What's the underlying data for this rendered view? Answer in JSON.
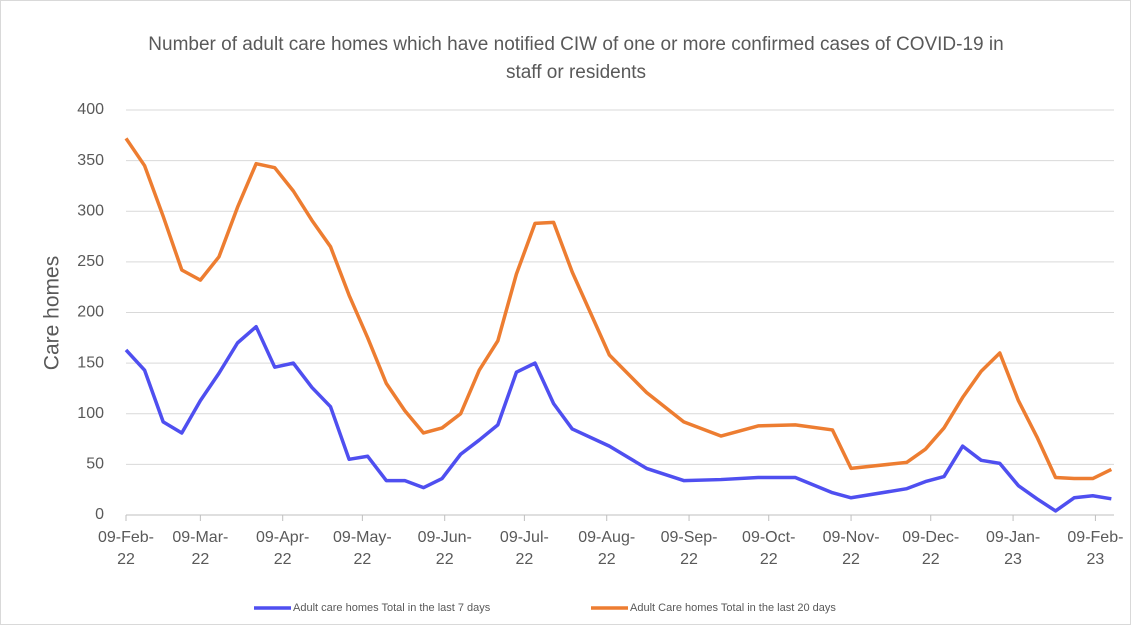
{
  "chart_data": {
    "type": "line",
    "title": "Number of adult care homes which have notified CIW of one or more confirmed cases of COVID-19 in staff or residents",
    "y_label": "Care homes",
    "x": [
      "2022-02-09",
      "2022-02-16",
      "2022-02-23",
      "2022-03-02",
      "2022-03-09",
      "2022-03-16",
      "2022-03-23",
      "2022-03-30",
      "2022-04-06",
      "2022-04-13",
      "2022-04-20",
      "2022-04-27",
      "2022-05-04",
      "2022-05-11",
      "2022-05-18",
      "2022-05-25",
      "2022-06-01",
      "2022-06-08",
      "2022-06-15",
      "2022-06-22",
      "2022-06-29",
      "2022-07-06",
      "2022-07-13",
      "2022-07-20",
      "2022-07-27",
      "2022-08-10",
      "2022-08-24",
      "2022-09-07",
      "2022-09-21",
      "2022-10-05",
      "2022-10-19",
      "2022-11-02",
      "2022-11-09",
      "2022-11-30",
      "2022-12-07",
      "2022-12-14",
      "2022-12-21",
      "2022-12-28",
      "2023-01-04",
      "2023-01-11",
      "2023-01-18",
      "2023-01-25",
      "2023-02-01",
      "2023-02-08",
      "2023-02-15"
    ],
    "series": [
      {
        "name": "Adult care homes Total in the last 7 days",
        "color": "#4f4ff0",
        "values": [
          163,
          143,
          92,
          81,
          113,
          140,
          170,
          186,
          146,
          150,
          126,
          107,
          55,
          58,
          34,
          34,
          27,
          36,
          60,
          74,
          89,
          141,
          150,
          110,
          85,
          68,
          46,
          34,
          35,
          37,
          37,
          22,
          17,
          26,
          33,
          38,
          68,
          54,
          51,
          29,
          16,
          4,
          17,
          19,
          16
        ]
      },
      {
        "name": "Adult Care homes Total in the last 20 days",
        "color": "#ed7d31",
        "values": [
          372,
          345,
          295,
          242,
          232,
          255,
          304,
          347,
          343,
          320,
          291,
          265,
          217,
          175,
          130,
          103,
          81,
          86,
          100,
          143,
          172,
          238,
          288,
          289,
          240,
          158,
          121,
          92,
          78,
          88,
          89,
          84,
          46,
          52,
          65,
          86,
          116,
          142,
          160,
          113,
          77,
          37,
          36,
          36,
          45
        ]
      }
    ],
    "xlim": [
      "2022-02-09",
      "2023-02-16"
    ],
    "xticks": [
      {
        "value": "2022-02-09",
        "label": "09-Feb-22"
      },
      {
        "value": "2022-03-09",
        "label": "09-Mar-22"
      },
      {
        "value": "2022-04-09",
        "label": "09-Apr-22"
      },
      {
        "value": "2022-05-09",
        "label": "09-May-22"
      },
      {
        "value": "2022-06-09",
        "label": "09-Jun-22"
      },
      {
        "value": "2022-07-09",
        "label": "09-Jul-22"
      },
      {
        "value": "2022-08-09",
        "label": "09-Aug-22"
      },
      {
        "value": "2022-09-09",
        "label": "09-Sep-22"
      },
      {
        "value": "2022-10-09",
        "label": "09-Oct-22"
      },
      {
        "value": "2022-11-09",
        "label": "09-Nov-22"
      },
      {
        "value": "2022-12-09",
        "label": "09-Dec-22"
      },
      {
        "value": "2023-01-09",
        "label": "09-Jan-23"
      },
      {
        "value": "2023-02-09",
        "label": "09-Feb-23"
      }
    ],
    "ylim": [
      0,
      400
    ],
    "yticks": [
      0,
      50,
      100,
      150,
      200,
      250,
      300,
      350,
      400
    ],
    "grid": true
  }
}
